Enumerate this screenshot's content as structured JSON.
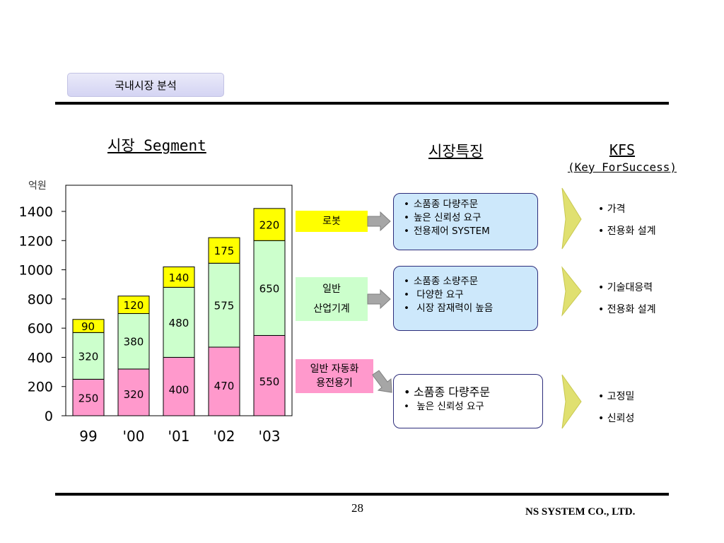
{
  "slide": {
    "badge": "국내시장 분석",
    "page_number": "28",
    "company": "NS SYSTEM CO., LTD."
  },
  "headings": {
    "segment": "시장 Segment",
    "features": "시장특징",
    "kfs_title": "KFS",
    "kfs_subtitle": "(Key ForSuccess)"
  },
  "chart_data": {
    "type": "bar",
    "stacked": true,
    "title": "",
    "xlabel": "",
    "ylabel": "억원",
    "categories": [
      "99",
      "'00",
      "'01",
      "'02",
      "'03"
    ],
    "ylim": [
      0,
      1500
    ],
    "yticks": [
      0,
      200,
      400,
      600,
      800,
      1000,
      1200,
      1400
    ],
    "grid": false,
    "series": [
      {
        "name": "일반 자동화 용전용기",
        "color": "#ff99cc",
        "values": [
          250,
          320,
          400,
          470,
          550
        ]
      },
      {
        "name": "일반 산업기계",
        "color": "#ccffcc",
        "values": [
          320,
          380,
          480,
          575,
          650
        ]
      },
      {
        "name": "로봇",
        "color": "#ffff00",
        "values": [
          90,
          120,
          140,
          175,
          220
        ]
      }
    ]
  },
  "segments": {
    "robot": [
      "로봇"
    ],
    "general": [
      "일반",
      "산업기계"
    ],
    "auto": [
      "일반 자동화",
      "용전용기"
    ]
  },
  "features": {
    "robot": [
      "소품종 다량주문",
      "높은 신뢰성 요구",
      "전용제어 SYSTEM"
    ],
    "general": [
      "소품종 소량주문",
      "다양한 요구",
      "시장 잠재력이 높음"
    ],
    "auto": [
      "소품종 다량주문",
      "높은 신뢰성 요구"
    ]
  },
  "kfs": {
    "robot": [
      "가격",
      "전용화 설계"
    ],
    "general": [
      "기술대응력",
      "전용화 설계"
    ],
    "auto": [
      "고정밀",
      "신뢰성"
    ]
  },
  "colors": {
    "arrow_gray": "#a6a6a6",
    "chevron_yellow": "#e0e070",
    "feature_blue": "#cde8fb"
  }
}
